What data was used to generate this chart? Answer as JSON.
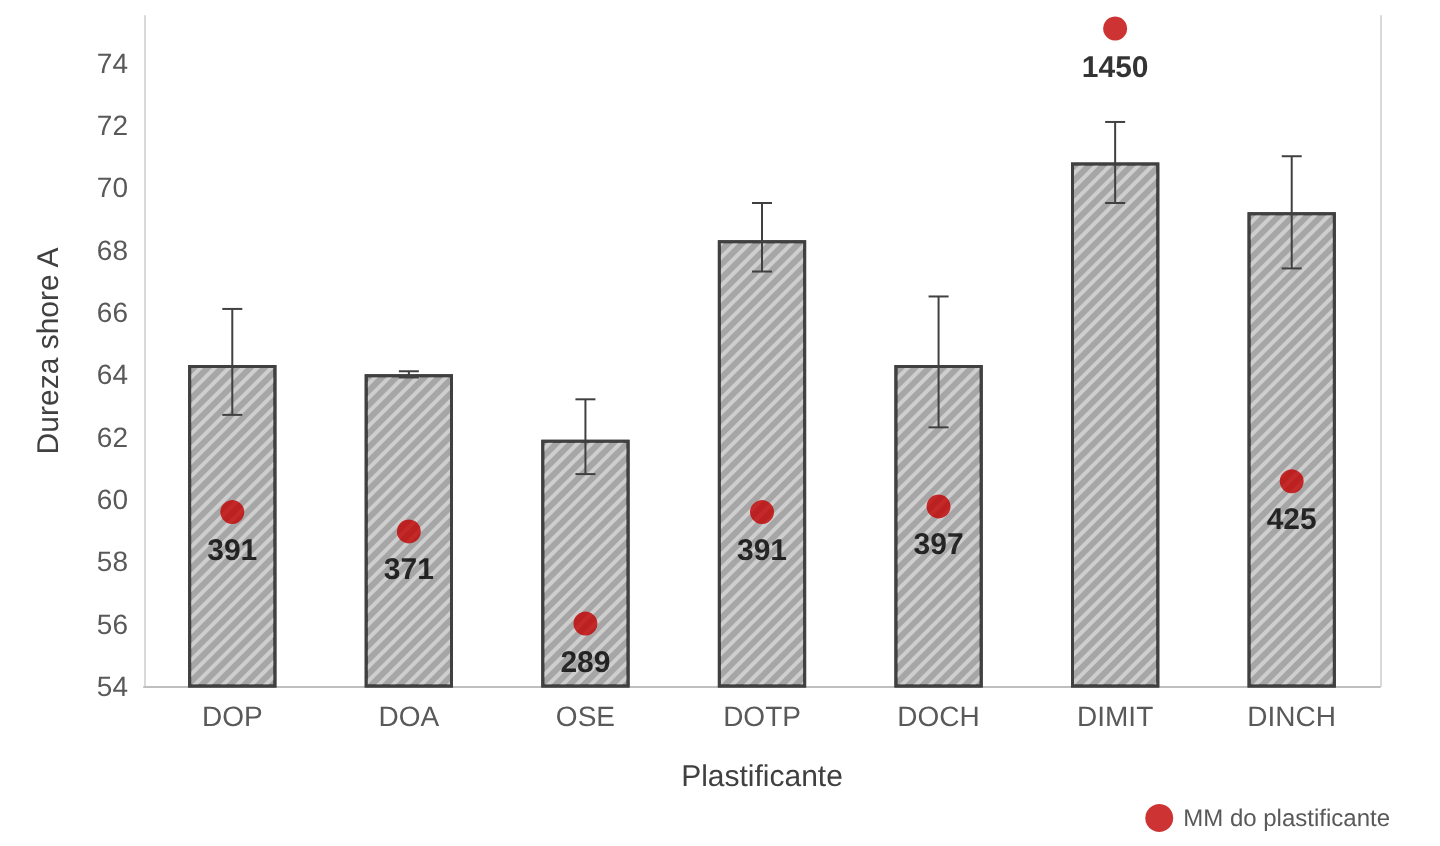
{
  "chart_data": {
    "type": "bar",
    "xlabel": "Plastificante",
    "ylabel": "Dureza shore A",
    "categories": [
      "DOP",
      "DOA",
      "OSE",
      "DOTP",
      "DOCH",
      "DIMIT",
      "DINCH"
    ],
    "ylim": [
      54,
      75.5
    ],
    "yticks": [
      54,
      56,
      58,
      60,
      62,
      64,
      66,
      68,
      70,
      72,
      74
    ],
    "y2lim": [
      244,
      1500
    ],
    "log": "y2",
    "grid": false,
    "legend": "bottom right",
    "series": [
      {
        "color": "#a6a6a6",
        "values": [
          64.3,
          64.0,
          61.9,
          68.3,
          64.3,
          70.8,
          69.2
        ],
        "errors": [
          [
            62.7,
            66.1
          ],
          [
            63.9,
            64.1
          ],
          [
            60.8,
            63.2
          ],
          [
            67.3,
            69.5
          ],
          [
            62.3,
            66.5
          ],
          [
            69.5,
            72.1
          ],
          [
            67.4,
            71.0
          ]
        ]
      },
      {
        "type": "scatter",
        "name": "MM do plastificante",
        "color": "#c00000",
        "axis": "y2",
        "marker": "circle",
        "data_labels": true,
        "values": [
          391,
          371,
          289,
          391,
          397,
          1450,
          425
        ]
      }
    ]
  }
}
